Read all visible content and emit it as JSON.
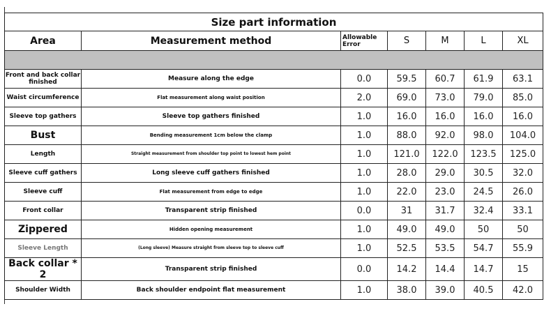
{
  "title": "Size part information",
  "headers": {
    "area": "Area",
    "method": "Measurement method",
    "allowable_error": "Allowable Error",
    "sizes": [
      "S",
      "M",
      "L",
      "XL"
    ]
  },
  "rows": [
    {
      "area": "Front and back collar finished",
      "method": "Measure along the edge",
      "error": "0.0",
      "values": [
        "59.5",
        "60.7",
        "61.9",
        "63.1"
      ]
    },
    {
      "area": "Waist circumference",
      "method": "Flat measurement along waist position",
      "error": "2.0",
      "values": [
        "69.0",
        "73.0",
        "79.0",
        "85.0"
      ]
    },
    {
      "area": "Sleeve top gathers",
      "method": "Sleeve top gathers finished",
      "error": "1.0",
      "values": [
        "16.0",
        "16.0",
        "16.0",
        "16.0"
      ]
    },
    {
      "area": "Bust",
      "method": "Bending measurement 1cm below the clamp",
      "error": "1.0",
      "values": [
        "88.0",
        "92.0",
        "98.0",
        "104.0"
      ]
    },
    {
      "area": "Length",
      "method": "Straight measurement from shoulder top point to lowest hem point",
      "error": "1.0",
      "values": [
        "121.0",
        "122.0",
        "123.5",
        "125.0"
      ]
    },
    {
      "area": "Sleeve cuff gathers",
      "method": "Long sleeve cuff gathers finished",
      "error": "1.0",
      "values": [
        "28.0",
        "29.0",
        "30.5",
        "32.0"
      ]
    },
    {
      "area": "Sleeve cuff",
      "method": "Flat measurement from edge to edge",
      "error": "1.0",
      "values": [
        "22.0",
        "23.0",
        "24.5",
        "26.0"
      ]
    },
    {
      "area": "Front collar",
      "method": "Transparent strip finished",
      "error": "0.0",
      "values": [
        "31",
        "31.7",
        "32.4",
        "33.1"
      ]
    },
    {
      "area": "Zippered",
      "method": "Hidden opening measurement",
      "error": "1.0",
      "values": [
        "49.0",
        "49.0",
        "50",
        "50"
      ]
    },
    {
      "area": "Sleeve Length",
      "method": "(Long sleeve) Measure straight from sleeve top to sleeve cuff",
      "error": "1.0",
      "values": [
        "52.5",
        "53.5",
        "54.7",
        "55.9"
      ]
    },
    {
      "area": "Back collar * 2",
      "method": "Transparent strip finished",
      "error": "0.0",
      "values": [
        "14.2",
        "14.4",
        "14.7",
        "15"
      ]
    },
    {
      "area": "Shoulder Width",
      "method": "Back shoulder endpoint flat measurement",
      "error": "1.0",
      "values": [
        "38.0",
        "39.0",
        "40.5",
        "42.0"
      ]
    }
  ]
}
